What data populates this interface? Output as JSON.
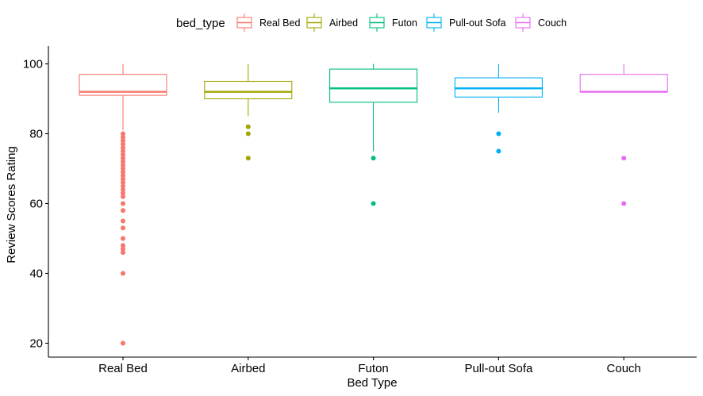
{
  "chart_data": {
    "type": "boxplot",
    "xlabel": "Bed Type",
    "ylabel": "Review Scores Rating",
    "ylim": [
      16,
      103
    ],
    "yticks": [
      20,
      40,
      60,
      80,
      100
    ],
    "grid": false,
    "legend": {
      "title": "bed_type",
      "position": "top"
    },
    "categories": [
      "Real Bed",
      "Airbed",
      "Futon",
      "Pull-out Sofa",
      "Couch"
    ],
    "series": [
      {
        "name": "Real Bed",
        "color": "#F8766D",
        "whisker_low": 81,
        "q1": 91,
        "median": 92,
        "q3": 97,
        "whisker_high": 100,
        "outliers": [
          80,
          79,
          78,
          77,
          76,
          75,
          74,
          73,
          72,
          71,
          70,
          69,
          68,
          67,
          66,
          65,
          64,
          63,
          62,
          60,
          58,
          55,
          53,
          50,
          48,
          47,
          46,
          40,
          20
        ]
      },
      {
        "name": "Airbed",
        "color": "#A3A500",
        "whisker_low": 85,
        "q1": 90,
        "median": 92,
        "q3": 95,
        "whisker_high": 100,
        "outliers": [
          82,
          80,
          73
        ]
      },
      {
        "name": "Futon",
        "color": "#00BF7D",
        "whisker_low": 75,
        "q1": 89,
        "median": 93,
        "q3": 98.5,
        "whisker_high": 100,
        "outliers": [
          73,
          60
        ]
      },
      {
        "name": "Pull-out Sofa",
        "color": "#00B0F6",
        "whisker_low": 86,
        "q1": 90.5,
        "median": 93,
        "q3": 96,
        "whisker_high": 100,
        "outliers": [
          80,
          75
        ]
      },
      {
        "name": "Couch",
        "color": "#E76BF3",
        "whisker_low": 92,
        "q1": 92,
        "median": 92,
        "q3": 97,
        "whisker_high": 100,
        "outliers": [
          73,
          60
        ]
      }
    ]
  }
}
